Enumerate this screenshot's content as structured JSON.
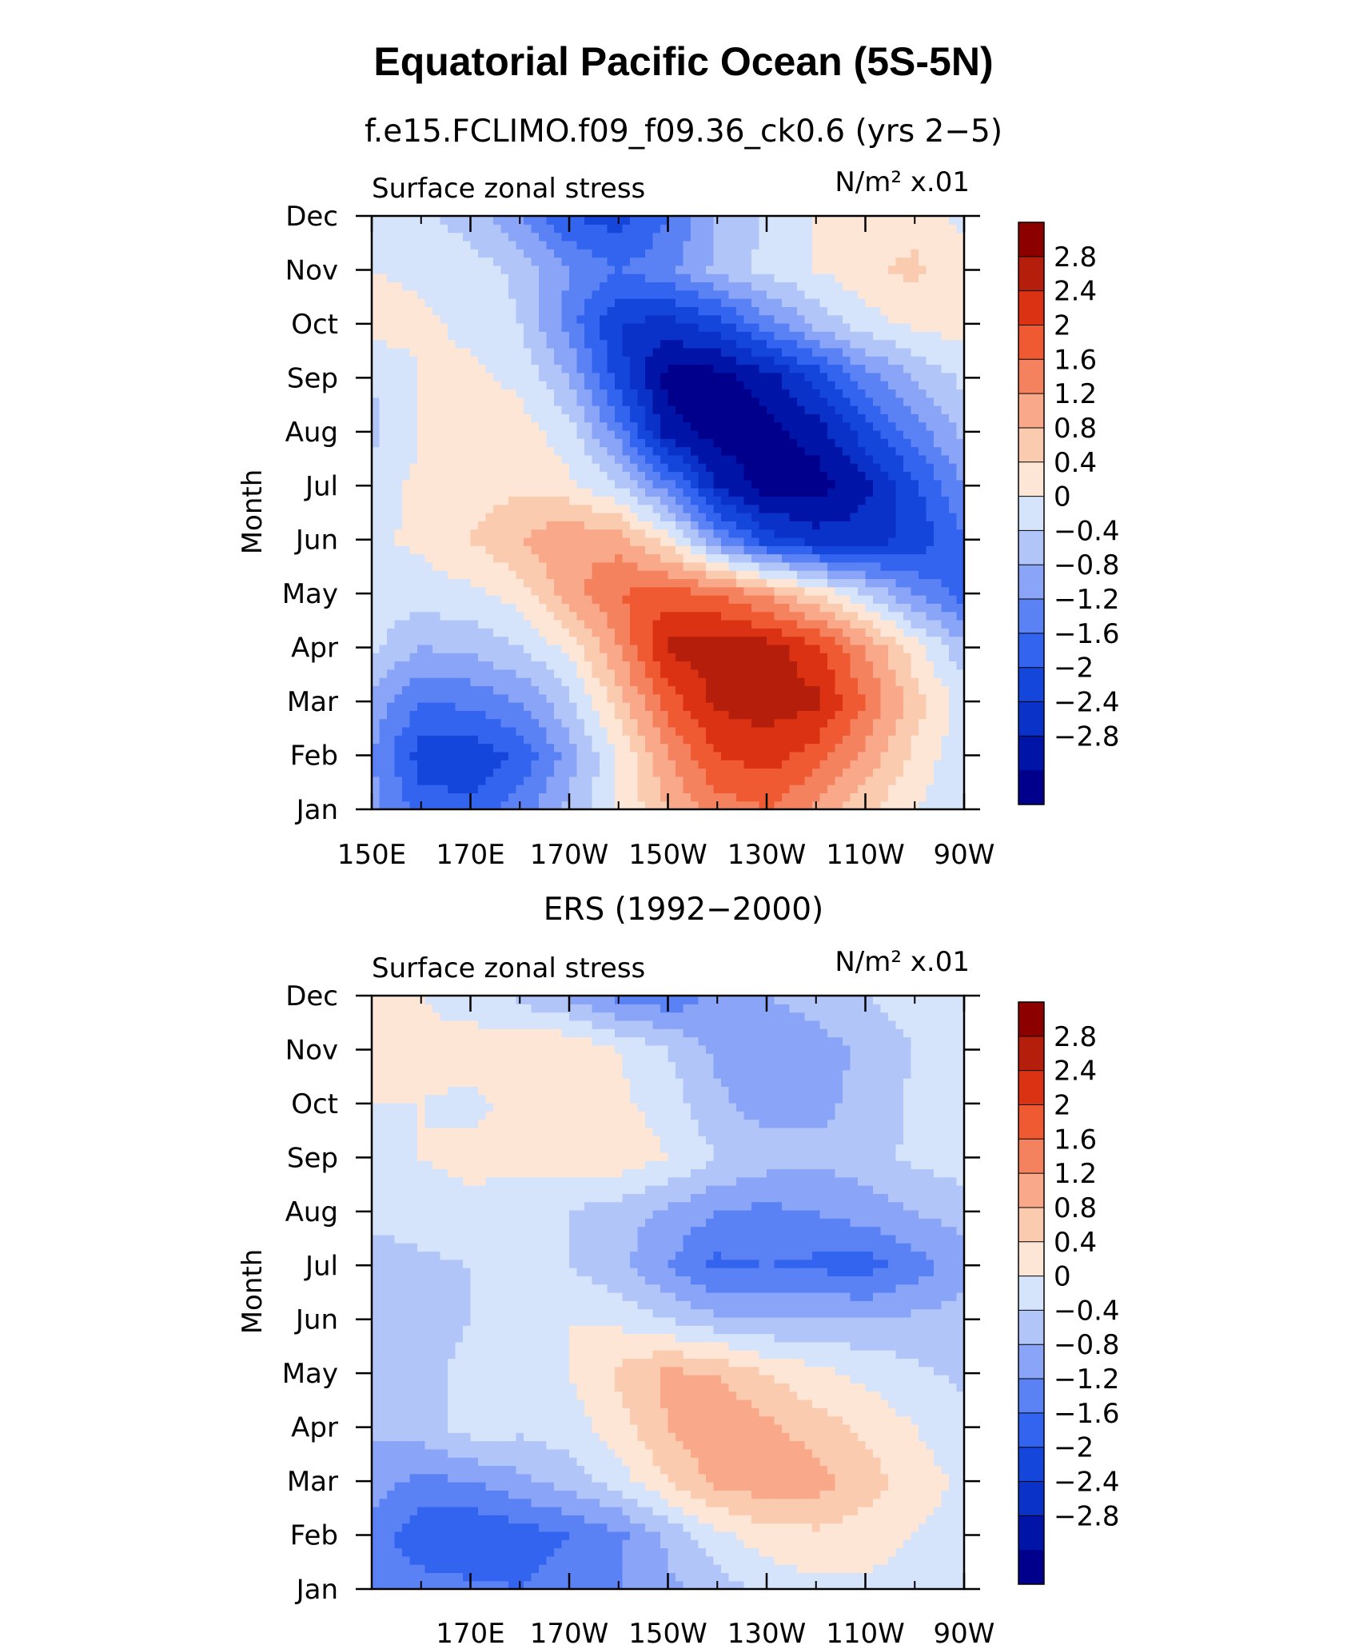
{
  "figure": {
    "title": "Equatorial Pacific Ocean (5S-5N)"
  },
  "palette": {
    "levels": [
      -2.8,
      -2.4,
      -2,
      -1.6,
      -1.2,
      -0.8,
      -0.4,
      0,
      0.4,
      0.8,
      1.2,
      1.6,
      2,
      2.4,
      2.8
    ],
    "level_labels": [
      "2.8",
      "2.4",
      "2",
      "1.6",
      "1.2",
      "0.8",
      "0.4",
      "0",
      "−0.4",
      "−0.8",
      "−1.2",
      "−1.6",
      "−2",
      "−2.4",
      "−2.8"
    ],
    "colors": [
      "#00008c",
      "#0014a8",
      "#0a32c8",
      "#1446dc",
      "#3264f0",
      "#5a82f5",
      "#8aa5f7",
      "#b2c5f9",
      "#d6e4fb",
      "#fde6d6",
      "#fbcbb0",
      "#f9a98a",
      "#f5825e",
      "#ef5a32",
      "#dc3214",
      "#b41e0a",
      "#8c0000"
    ]
  },
  "chart_data": [
    {
      "type": "heatmap",
      "subtitle": "f.e15.FCLIMO.f09_f09.36_ck0.6 (yrs 2−5)",
      "left_label": "Surface zonal stress",
      "units": "N/m² x.01",
      "ylabel": "Month",
      "xlabel": "",
      "x_ticks": [
        "150E",
        "170E",
        "170W",
        "150W",
        "130W",
        "110W",
        "90W"
      ],
      "y_ticks": [
        "Jan",
        "Feb",
        "Mar",
        "Apr",
        "May",
        "Jun",
        "Jul",
        "Aug",
        "Sep",
        "Oct",
        "Nov",
        "Dec"
      ],
      "x_range": [
        "150E",
        "90W"
      ],
      "x_coords": [
        150,
        160,
        170,
        180,
        190,
        200,
        210,
        220,
        230,
        240,
        250,
        260,
        270
      ],
      "y_range": [
        "Jan",
        "Dec"
      ],
      "grid": false,
      "values": [
        [
          -0.6,
          -1.4,
          -1.5,
          -1.0,
          -0.3,
          0.4,
          1.2,
          1.8,
          2.0,
          1.5,
          0.9,
          0.4,
          0.0
        ],
        [
          -0.8,
          -1.8,
          -1.9,
          -1.5,
          -0.6,
          0.4,
          1.6,
          2.4,
          2.6,
          2.2,
          1.5,
          0.7,
          0.1
        ],
        [
          -0.5,
          -1.2,
          -1.1,
          -0.8,
          -0.1,
          1.0,
          2.2,
          2.9,
          3.0,
          2.9,
          2.0,
          1.0,
          0.2
        ],
        [
          0.1,
          -0.4,
          -0.3,
          0.0,
          0.5,
          1.6,
          2.9,
          3.0,
          3.0,
          2.5,
          1.6,
          0.6,
          -0.3
        ],
        [
          0.2,
          0.2,
          0.3,
          0.6,
          1.4,
          2.0,
          2.2,
          2.0,
          1.5,
          0.8,
          0.0,
          -0.8,
          -1.4
        ],
        [
          0.3,
          0.5,
          0.8,
          1.2,
          1.6,
          1.4,
          0.6,
          -0.8,
          -1.8,
          -2.2,
          -2.2,
          -1.9,
          -1.2
        ],
        [
          0.2,
          0.5,
          0.6,
          0.7,
          0.5,
          0.0,
          -1.0,
          -2.4,
          -3.0,
          -3.0,
          -2.5,
          -1.7,
          -0.8
        ],
        [
          -0.1,
          0.4,
          0.6,
          0.6,
          0.2,
          -1.0,
          -2.6,
          -3.0,
          -3.0,
          -2.6,
          -1.8,
          -1.0,
          -0.3
        ],
        [
          0.0,
          0.4,
          0.5,
          0.3,
          -0.4,
          -1.8,
          -3.0,
          -3.0,
          -2.6,
          -1.9,
          -1.0,
          -0.4,
          0.1
        ],
        [
          0.6,
          0.5,
          0.3,
          0.0,
          -1.0,
          -2.0,
          -2.2,
          -1.8,
          -1.0,
          -0.3,
          0.2,
          0.5,
          0.6
        ],
        [
          0.4,
          0.3,
          0.2,
          -0.1,
          -0.8,
          -1.2,
          -0.9,
          -0.3,
          0.1,
          0.4,
          0.7,
          0.9,
          0.5
        ],
        [
          0.2,
          0.1,
          -0.2,
          -0.8,
          -1.6,
          -1.8,
          -1.2,
          -0.4,
          0.1,
          0.4,
          0.6,
          0.6,
          0.3
        ]
      ]
    },
    {
      "type": "heatmap",
      "subtitle": "ERS (1992−2000)",
      "left_label": "Surface zonal stress",
      "units": "N/m² x.01",
      "ylabel": "Month",
      "xlabel": "",
      "x_ticks": [
        "170E",
        "170W",
        "150W",
        "130W",
        "110W",
        "90W"
      ],
      "y_ticks": [
        "Jan",
        "Feb",
        "Mar",
        "Apr",
        "May",
        "Jun",
        "Jul",
        "Aug",
        "Sep",
        "Oct",
        "Nov",
        "Dec"
      ],
      "x_range": [
        "150E",
        "90W"
      ],
      "x_coords": [
        150,
        160,
        170,
        180,
        190,
        200,
        210,
        220,
        230,
        240,
        250,
        260,
        270
      ],
      "y_range": [
        "Jan",
        "Dec"
      ],
      "grid": false,
      "values": [
        [
          -0.8,
          -1.0,
          -1.1,
          -1.2,
          -1.0,
          -0.8,
          -0.5,
          -0.2,
          0.1,
          0.3,
          0.3,
          0.2,
          0.1
        ],
        [
          -1.0,
          -1.5,
          -1.6,
          -1.4,
          -1.2,
          -0.9,
          -0.3,
          0.3,
          0.6,
          0.7,
          0.6,
          0.4,
          0.2
        ],
        [
          -0.6,
          -0.9,
          -0.8,
          -0.5,
          -0.2,
          0.2,
          0.8,
          1.3,
          1.5,
          1.4,
          1.0,
          0.6,
          0.3
        ],
        [
          -0.3,
          -0.2,
          0.2,
          0.1,
          0.2,
          0.6,
          1.2,
          1.6,
          1.3,
          1.0,
          0.7,
          0.4,
          0.1
        ],
        [
          -0.2,
          -0.1,
          0.1,
          0.2,
          0.4,
          0.9,
          1.3,
          1.2,
          0.8,
          0.5,
          0.3,
          0.1,
          -0.1
        ],
        [
          -0.4,
          -0.2,
          0.0,
          0.2,
          0.4,
          0.3,
          0.0,
          -0.3,
          -0.4,
          -0.3,
          -0.4,
          -0.3,
          -0.2
        ],
        [
          -0.2,
          -0.1,
          0.0,
          0.1,
          0.0,
          -0.3,
          -0.8,
          -1.3,
          -1.2,
          -1.3,
          -1.4,
          -1.0,
          -0.6
        ],
        [
          0.1,
          0.2,
          0.3,
          0.2,
          0.0,
          -0.2,
          -0.5,
          -0.8,
          -0.9,
          -0.8,
          -0.6,
          -0.4,
          -0.2
        ],
        [
          0.3,
          0.4,
          0.5,
          0.5,
          0.6,
          0.7,
          0.4,
          0.0,
          -0.2,
          -0.3,
          -0.2,
          0.1,
          0.2
        ],
        [
          0.4,
          0.4,
          0.3,
          0.5,
          0.6,
          0.5,
          0.2,
          -0.3,
          -0.6,
          -0.5,
          -0.3,
          0.1,
          0.2
        ],
        [
          0.5,
          0.5,
          0.6,
          0.7,
          0.8,
          0.4,
          0.0,
          -0.5,
          -0.7,
          -0.6,
          -0.3,
          0.0,
          0.2
        ],
        [
          0.6,
          0.4,
          0.2,
          -0.1,
          -0.5,
          -0.9,
          -1.1,
          -0.7,
          -0.4,
          -0.2,
          0.0,
          0.2,
          0.3
        ]
      ]
    }
  ]
}
